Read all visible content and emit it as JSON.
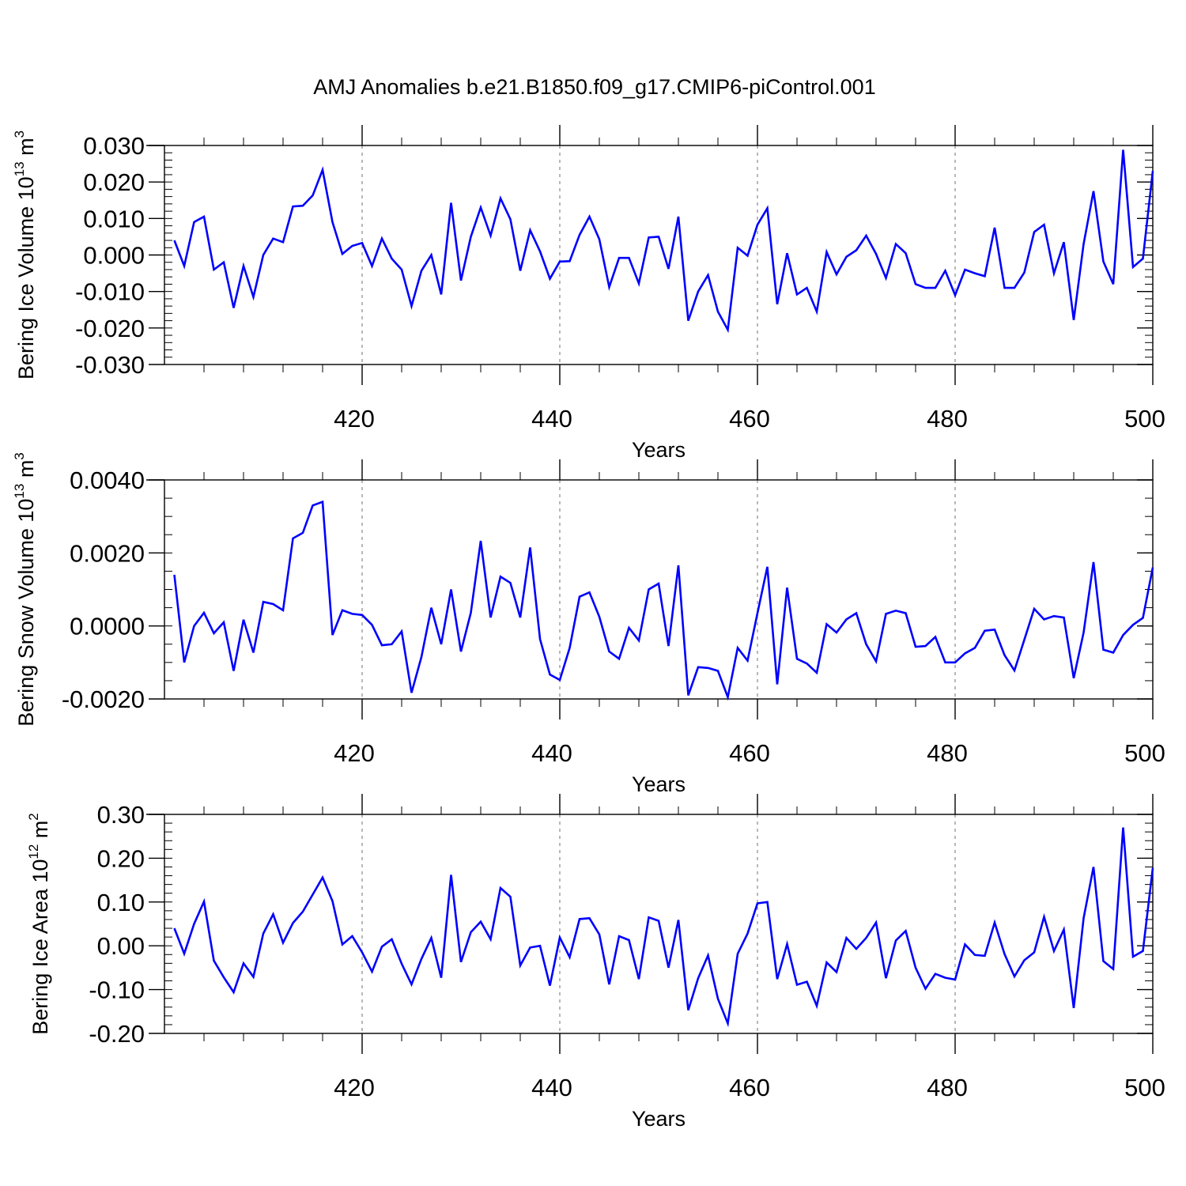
{
  "title": "AMJ Anomalies b.e21.B1850.f09_g17.CMIP6-piControl.001",
  "colors": {
    "series": "#0000ff",
    "axis": "#000000",
    "vline": "#888888"
  },
  "chart_data": [
    {
      "type": "line",
      "ylabel": "Bering Ice Volume 10",
      "ylabel_exp": "13",
      "ylabel_unit": " m",
      "ylabel_unit_exp": "3",
      "xlabel": "Years",
      "xlim": [
        400,
        500
      ],
      "ylim": [
        -0.03,
        0.03
      ],
      "xticks": [
        420,
        440,
        460,
        480,
        500
      ],
      "xtick_labels": [
        "420",
        "440",
        "460",
        "480",
        "500"
      ],
      "yticks": [
        0.03,
        0.02,
        0.01,
        0.0,
        -0.01,
        -0.02,
        -0.03
      ],
      "ytick_labels": [
        "0.030",
        "0.020",
        "0.010",
        "0.000",
        "-0.010",
        "-0.020",
        "-0.030"
      ],
      "yminor_step": 0.002,
      "vlines": [
        420,
        440,
        460,
        480
      ],
      "x_start": 401,
      "values": [
        0.004,
        -0.003,
        0.009,
        0.0105,
        -0.004,
        -0.002,
        -0.0145,
        -0.003,
        -0.0115,
        0.0,
        0.0045,
        0.0035,
        0.0133,
        0.0135,
        0.0163,
        0.0233,
        0.009,
        0.0003,
        0.0025,
        0.0033,
        -0.003,
        0.0045,
        -0.001,
        -0.004,
        -0.014,
        -0.0043,
        0.0,
        -0.0108,
        0.0143,
        -0.007,
        0.005,
        0.013,
        0.0053,
        0.0155,
        0.0098,
        -0.0043,
        0.0068,
        0.001,
        -0.0065,
        -0.0018,
        -0.0017,
        0.0055,
        0.0105,
        0.0043,
        -0.0088,
        -0.0008,
        -0.0008,
        -0.0078,
        0.0048,
        0.005,
        -0.0038,
        0.0105,
        -0.018,
        -0.01,
        -0.0055,
        -0.0155,
        -0.0205,
        0.002,
        -0.0002,
        0.0083,
        0.0128,
        -0.0135,
        0.0005,
        -0.0108,
        -0.009,
        -0.0155,
        0.0008,
        -0.0053,
        -0.0005,
        0.0013,
        0.0053,
        0.0003,
        -0.0063,
        0.003,
        0.0005,
        -0.008,
        -0.009,
        -0.009,
        -0.0043,
        -0.011,
        -0.004,
        -0.005,
        -0.0058,
        0.0075,
        -0.009,
        -0.009,
        -0.0048,
        0.0063,
        0.0083,
        -0.005,
        0.0035,
        -0.0178,
        0.003,
        0.0175,
        -0.0018,
        -0.008,
        0.0288,
        -0.0033,
        -0.001,
        0.023
      ]
    },
    {
      "type": "line",
      "ylabel": "Bering Snow Volume 10",
      "ylabel_exp": "13",
      "ylabel_unit": " m",
      "ylabel_unit_exp": "3",
      "xlabel": "Years",
      "xlim": [
        400,
        500
      ],
      "ylim": [
        -0.002,
        0.004
      ],
      "xticks": [
        420,
        440,
        460,
        480,
        500
      ],
      "xtick_labels": [
        "420",
        "440",
        "460",
        "480",
        "500"
      ],
      "yticks": [
        0.004,
        0.002,
        0.0,
        -0.002
      ],
      "ytick_labels": [
        "0.0040",
        "0.0020",
        "0.0000",
        "-0.0020"
      ],
      "yminor_step": 0.0005,
      "vlines": [
        420,
        440,
        460,
        480
      ],
      "x_start": 401,
      "values": [
        0.0014,
        -0.001,
        0.0,
        0.00036,
        -0.0002,
        0.0001,
        -0.00123,
        0.00017,
        -0.00073,
        0.00066,
        0.0006,
        0.00043,
        0.0024,
        0.00255,
        0.0033,
        0.0034,
        -0.00025,
        0.00043,
        0.00033,
        0.0003,
        3e-05,
        -0.00053,
        -0.0005,
        -0.00015,
        -0.00183,
        -0.00085,
        0.0005,
        -0.0005,
        0.001,
        -0.0007,
        0.00036,
        0.00233,
        0.00023,
        0.00135,
        0.00118,
        0.00023,
        0.00215,
        -0.00036,
        -0.00133,
        -0.00148,
        -0.0006,
        0.0008,
        0.00092,
        0.00025,
        -0.0007,
        -0.0009,
        -5e-05,
        -0.0004,
        0.001,
        0.00116,
        -0.00055,
        0.00166,
        -0.0019,
        -0.00113,
        -0.00115,
        -0.00123,
        -0.00195,
        -0.0006,
        -0.00095,
        0.00035,
        0.00162,
        -0.0016,
        0.00105,
        -0.0009,
        -0.00103,
        -0.00128,
        5e-05,
        -0.00018,
        0.00018,
        0.00035,
        -0.0005,
        -0.00097,
        0.00033,
        0.00042,
        0.00035,
        -0.00057,
        -0.00055,
        -0.0003,
        -0.001,
        -0.001,
        -0.00075,
        -0.0006,
        -0.00013,
        -0.0001,
        -0.0008,
        -0.00122,
        -0.00038,
        0.00047,
        0.00018,
        0.00027,
        0.00023,
        -0.00143,
        -0.00018,
        0.00175,
        -0.00065,
        -0.00073,
        -0.00025,
        3e-05,
        0.00022,
        0.0016
      ]
    },
    {
      "type": "line",
      "ylabel": "Bering Ice Area 10",
      "ylabel_exp": "12",
      "ylabel_unit": " m",
      "ylabel_unit_exp": "2",
      "xlabel": "Years",
      "xlim": [
        400,
        500
      ],
      "ylim": [
        -0.2,
        0.3
      ],
      "xticks": [
        420,
        440,
        460,
        480,
        500
      ],
      "xtick_labels": [
        "420",
        "440",
        "460",
        "480",
        "500"
      ],
      "yticks": [
        0.3,
        0.2,
        0.1,
        0.0,
        -0.1,
        -0.2
      ],
      "ytick_labels": [
        "0.30",
        "0.20",
        "0.10",
        "0.00",
        "-0.10",
        "-0.20"
      ],
      "yminor_step": 0.02,
      "vlines": [
        420,
        440,
        460,
        480
      ],
      "x_start": 401,
      "values": [
        0.04,
        -0.018,
        0.05,
        0.101,
        -0.034,
        -0.072,
        -0.106,
        -0.04,
        -0.071,
        0.028,
        0.072,
        0.007,
        0.052,
        0.078,
        0.117,
        0.156,
        0.102,
        0.003,
        0.022,
        -0.015,
        -0.059,
        -0.002,
        0.015,
        -0.041,
        -0.088,
        -0.03,
        0.018,
        -0.073,
        0.162,
        -0.037,
        0.031,
        0.055,
        0.015,
        0.132,
        0.112,
        -0.045,
        -0.004,
        0.0,
        -0.091,
        0.019,
        -0.026,
        0.061,
        0.063,
        0.026,
        -0.088,
        0.022,
        0.013,
        -0.076,
        0.065,
        0.057,
        -0.05,
        0.059,
        -0.147,
        -0.074,
        -0.022,
        -0.121,
        -0.177,
        -0.018,
        0.028,
        0.097,
        0.1,
        -0.076,
        0.004,
        -0.089,
        -0.082,
        -0.137,
        -0.038,
        -0.06,
        0.018,
        -0.007,
        0.018,
        0.053,
        -0.074,
        0.012,
        0.034,
        -0.05,
        -0.098,
        -0.064,
        -0.073,
        -0.077,
        0.003,
        -0.021,
        -0.023,
        0.053,
        -0.019,
        -0.07,
        -0.033,
        -0.015,
        0.066,
        -0.012,
        0.037,
        -0.142,
        0.063,
        0.18,
        -0.035,
        -0.053,
        0.27,
        -0.025,
        -0.012,
        0.178
      ]
    }
  ]
}
